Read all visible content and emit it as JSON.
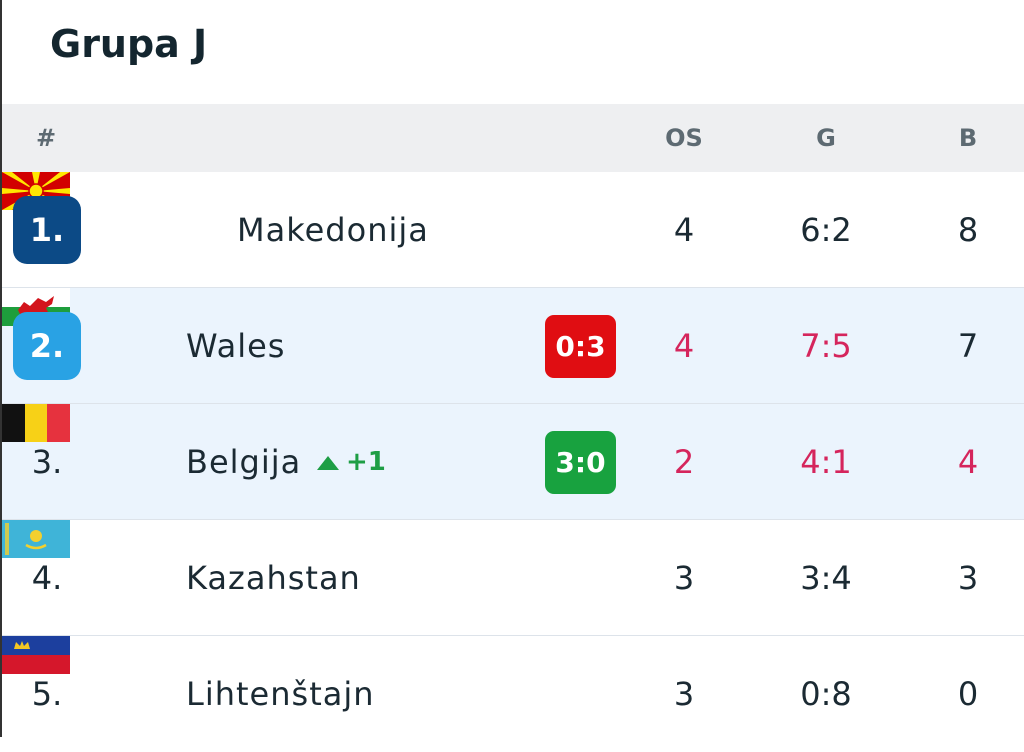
{
  "title": "Grupa J",
  "table": {
    "header": [
      "#",
      "OS",
      "G",
      "B"
    ],
    "rows": [
      {
        "rank": "1.",
        "team": "Makedonija",
        "os": "4",
        "g": "6:2",
        "b": "8"
      },
      {
        "rank": "2.",
        "team": "Wales",
        "score": "0:3",
        "os": "4",
        "g": "7:5",
        "b": "7"
      },
      {
        "rank": "3.",
        "team": "Belgija",
        "change": "+1",
        "score": "3:0",
        "os": "2",
        "g": "4:1",
        "b": "4"
      },
      {
        "rank": "4.",
        "team": "Kazahstan",
        "os": "3",
        "g": "3:4",
        "b": "3"
      },
      {
        "rank": "5.",
        "team": "Lihtenštajn",
        "os": "3",
        "g": "0:8",
        "b": "0"
      }
    ]
  }
}
